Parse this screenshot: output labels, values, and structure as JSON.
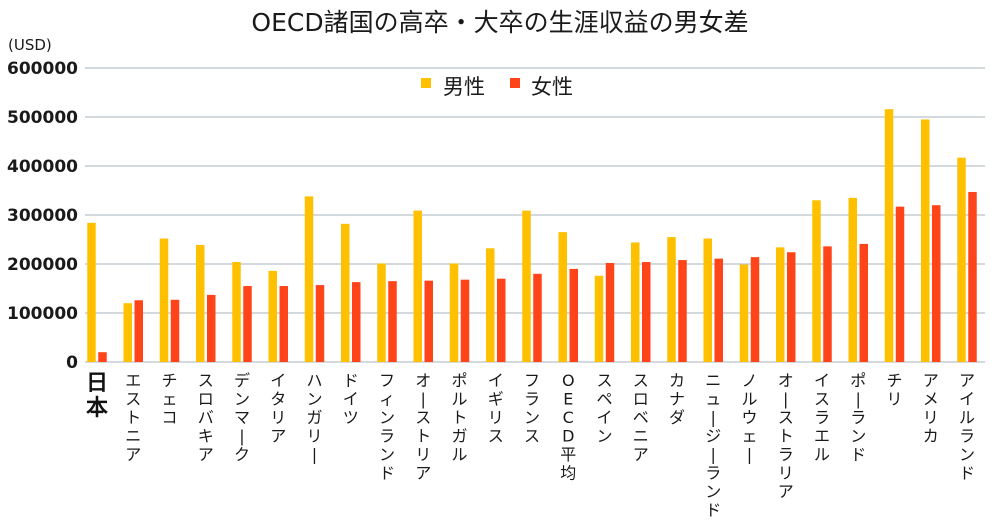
{
  "chart_data": {
    "type": "bar",
    "title": "OECD諸国の高卒・大卒の生涯収益の男女差",
    "ylabel": "(USD)",
    "xlabel": "",
    "ylim": [
      0,
      600000
    ],
    "yticks": [
      0,
      100000,
      200000,
      300000,
      400000,
      500000,
      600000
    ],
    "ytick_labels": [
      "0",
      "100000",
      "200000",
      "300000",
      "400000",
      "500000",
      "600000"
    ],
    "grid": true,
    "legend_position": "top-center",
    "highlight_category": "日本",
    "categories": [
      "日本",
      "エストニア",
      "チェコ",
      "スロバキア",
      "デンマーク",
      "イタリア",
      "ハンガリー",
      "ドイツ",
      "フィンランド",
      "オーストリア",
      "ポルトガル",
      "イギリス",
      "フランス",
      "OECD平均",
      "スペイン",
      "スロベニア",
      "カナダ",
      "ニュージーランド",
      "ノルウェー",
      "オーストラリア",
      "イスラエル",
      "ポーランド",
      "チリ",
      "アメリカ",
      "アイルランド"
    ],
    "series": [
      {
        "name": "男性",
        "color": "#FFC000",
        "values": [
          284000,
          120000,
          252000,
          239000,
          204000,
          186000,
          338000,
          282000,
          201000,
          309000,
          201000,
          232000,
          309000,
          265000,
          176000,
          244000,
          255000,
          252000,
          199000,
          234000,
          330000,
          335000,
          516000,
          495000,
          417000
        ]
      },
      {
        "name": "女性",
        "color": "#FF4419",
        "values": [
          20000,
          126000,
          127000,
          137000,
          155000,
          155000,
          157000,
          163000,
          165000,
          166000,
          168000,
          170000,
          180000,
          190000,
          202000,
          204000,
          208000,
          211000,
          214000,
          224000,
          236000,
          241000,
          317000,
          320000,
          347000
        ]
      }
    ]
  }
}
